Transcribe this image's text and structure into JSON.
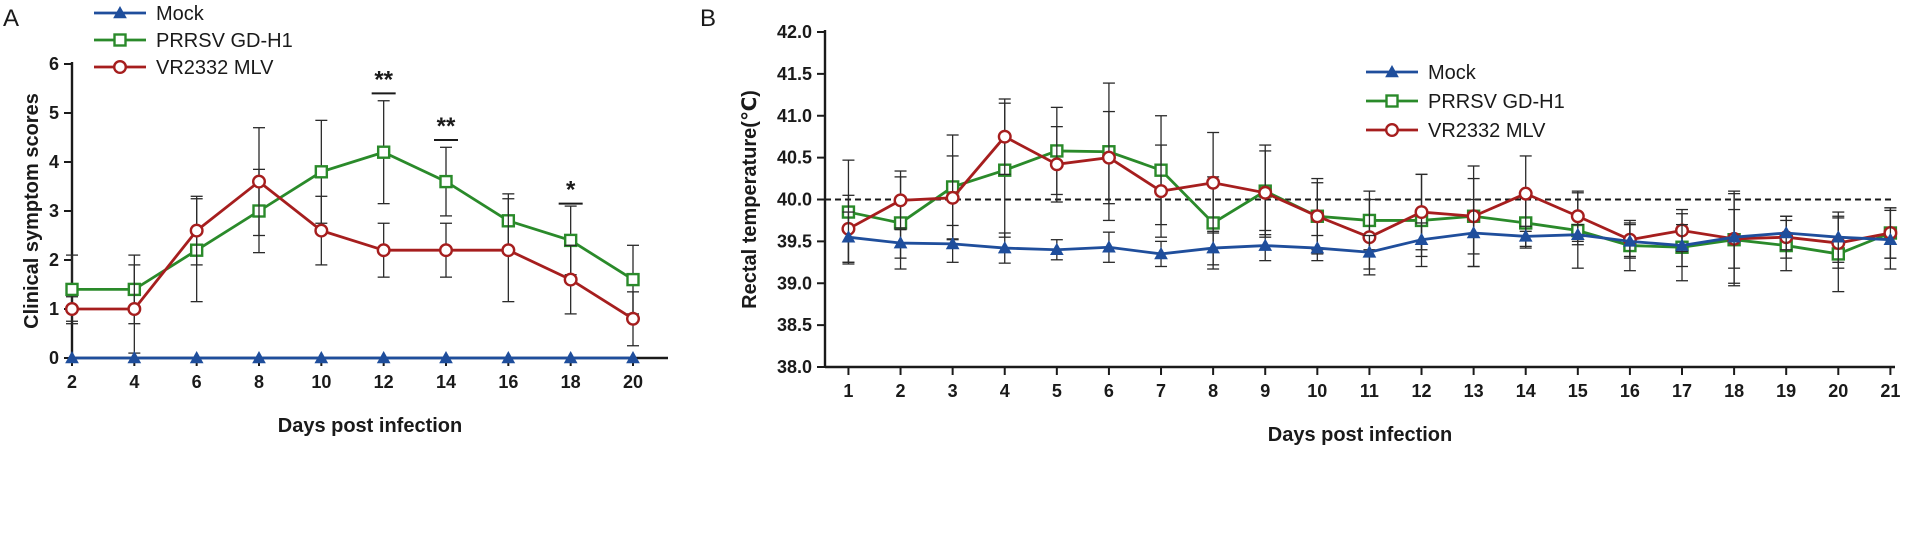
{
  "chart_data": [
    {
      "panel": "A",
      "type": "line",
      "xlabel": "Days post infection",
      "ylabel": "Clinical symptom scores",
      "x": [
        2,
        4,
        6,
        8,
        10,
        12,
        14,
        16,
        18,
        20
      ],
      "xticks": [
        "2",
        "4",
        "6",
        "8",
        "10",
        "12",
        "14",
        "16",
        "18",
        "20"
      ],
      "ylim": [
        0,
        6
      ],
      "yticks": [
        "0",
        "1",
        "2",
        "3",
        "4",
        "5",
        "6"
      ],
      "legend_position": "top-left",
      "series": [
        {
          "name": "Mock",
          "color": "#1f4e9c",
          "marker": "triangle",
          "values": [
            0,
            0,
            0,
            0,
            0,
            0,
            0,
            0,
            0,
            0
          ],
          "errors": [
            0,
            0,
            0,
            0,
            0,
            0,
            0,
            0,
            0,
            0
          ]
        },
        {
          "name": "PRRSV GD-H1",
          "color": "#2a8a2a",
          "marker": "square",
          "values": [
            1.4,
            1.4,
            2.2,
            3.0,
            3.8,
            4.2,
            3.6,
            2.8,
            2.4,
            1.6
          ],
          "errors": [
            0.7,
            0.7,
            1.05,
            0.85,
            1.05,
            1.05,
            0.7,
            0.55,
            0.7,
            0.7
          ]
        },
        {
          "name": "VR2332 MLV",
          "color": "#a61e1e",
          "marker": "circle",
          "values": [
            1.0,
            1.0,
            2.6,
            3.6,
            2.6,
            2.2,
            2.2,
            2.2,
            1.6,
            0.8
          ],
          "errors": [
            0.25,
            0.9,
            0.7,
            1.1,
            0.7,
            0.55,
            0.55,
            1.05,
            0.7,
            0.55
          ]
        }
      ],
      "annotations": [
        {
          "x": 12,
          "label": "**",
          "y": 5.4
        },
        {
          "x": 14,
          "label": "**",
          "y": 4.45
        },
        {
          "x": 18,
          "label": "*",
          "y": 3.15
        }
      ]
    },
    {
      "panel": "B",
      "type": "line",
      "xlabel": "Days post infection",
      "ylabel": "Rectal temperature(℃)",
      "x": [
        1,
        2,
        3,
        4,
        5,
        6,
        7,
        8,
        9,
        10,
        11,
        12,
        13,
        14,
        15,
        16,
        17,
        18,
        19,
        20,
        21
      ],
      "xticks": [
        "1",
        "2",
        "3",
        "4",
        "5",
        "6",
        "7",
        "8",
        "9",
        "10",
        "11",
        "12",
        "13",
        "14",
        "15",
        "16",
        "17",
        "18",
        "19",
        "20",
        "21"
      ],
      "ylim": [
        38.0,
        42.0
      ],
      "yticks": [
        "38.0",
        "38.5",
        "39.0",
        "39.5",
        "40.0",
        "40.5",
        "41.0",
        "41.5",
        "42.0"
      ],
      "reference_line": 40.0,
      "legend_position": "top-right",
      "series": [
        {
          "name": "Mock",
          "color": "#1f4e9c",
          "marker": "triangle",
          "values": [
            39.55,
            39.48,
            39.47,
            39.42,
            39.4,
            39.43,
            39.35,
            39.42,
            39.45,
            39.42,
            39.37,
            39.52,
            39.6,
            39.56,
            39.58,
            39.5,
            39.45,
            39.55,
            39.6,
            39.55,
            39.52
          ],
          "errors": [
            0.3,
            0.18,
            0.22,
            0.18,
            0.12,
            0.18,
            0.15,
            0.2,
            0.18,
            0.15,
            0.2,
            0.2,
            0.4,
            0.12,
            0.12,
            0.2,
            0.25,
            0.55,
            0.2,
            0.3,
            0.35
          ]
        },
        {
          "name": "PRRSV GD-H1",
          "color": "#2a8a2a",
          "marker": "square",
          "values": [
            39.85,
            39.72,
            40.15,
            40.35,
            40.58,
            40.57,
            40.35,
            39.72,
            40.1,
            39.8,
            39.75,
            39.75,
            39.8,
            39.72,
            39.63,
            39.45,
            39.43,
            39.52,
            39.45,
            39.35,
            39.6
          ],
          "errors": [
            0.62,
            0.55,
            0.62,
            0.8,
            0.52,
            0.82,
            0.65,
            0.55,
            0.55,
            0.45,
            0.35,
            0.55,
            0.6,
            0.3,
            0.45,
            0.3,
            0.4,
            0.55,
            0.3,
            0.45,
            0.3
          ]
        },
        {
          "name": "VR2332 MLV",
          "color": "#a61e1e",
          "marker": "circle",
          "values": [
            39.65,
            39.99,
            40.02,
            40.75,
            40.42,
            40.5,
            40.1,
            40.2,
            40.08,
            39.8,
            39.55,
            39.85,
            39.8,
            40.07,
            39.8,
            39.52,
            39.63,
            39.53,
            39.55,
            39.48,
            39.6
          ],
          "errors": [
            0.4,
            0.35,
            0.5,
            0.45,
            0.45,
            0.55,
            0.55,
            0.6,
            0.5,
            0.4,
            0.45,
            0.45,
            0.45,
            0.45,
            0.3,
            0.2,
            0.25,
            0.35,
            0.25,
            0.3,
            0.3
          ]
        }
      ]
    }
  ]
}
